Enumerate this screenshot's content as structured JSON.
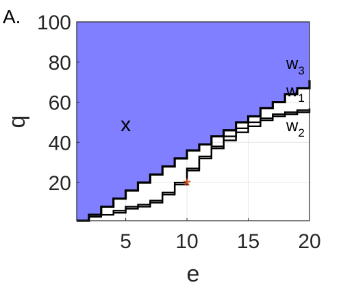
{
  "chart_data": {
    "type": "line",
    "panel_label": "A.",
    "xlabel": "e",
    "ylabel": "q",
    "xlim": [
      1,
      20
    ],
    "ylim": [
      1,
      100
    ],
    "xticks": [
      5,
      10,
      15,
      20
    ],
    "yticks": [
      20,
      40,
      60,
      80,
      100
    ],
    "grid": true,
    "region": {
      "label": "x",
      "label_at": [
        5,
        49
      ],
      "color": "#7f7fff",
      "description_boundary": "w3"
    },
    "marker": {
      "symbol": "*",
      "x": 10,
      "y": 20,
      "color": "#d95319"
    },
    "series": [
      {
        "name": "w3",
        "label_main": "w",
        "label_sub": "3",
        "points": [
          [
            1,
            1
          ],
          [
            2,
            4
          ],
          [
            3,
            8
          ],
          [
            4,
            12
          ],
          [
            5,
            16
          ],
          [
            6,
            20
          ],
          [
            7,
            24
          ],
          [
            8,
            28
          ],
          [
            9,
            32
          ],
          [
            10,
            36
          ],
          [
            11,
            39
          ],
          [
            12,
            43
          ],
          [
            13,
            46
          ],
          [
            14,
            50
          ],
          [
            15,
            53
          ],
          [
            16,
            57
          ],
          [
            17,
            60
          ],
          [
            18,
            64
          ],
          [
            19,
            67
          ],
          [
            20,
            71
          ]
        ]
      },
      {
        "name": "w1",
        "label_main": "w",
        "label_sub": "1",
        "points": [
          [
            1,
            1
          ],
          [
            2,
            3
          ],
          [
            3,
            4
          ],
          [
            4,
            6
          ],
          [
            5,
            8
          ],
          [
            6,
            9
          ],
          [
            7,
            11
          ],
          [
            8,
            15
          ],
          [
            9,
            20
          ],
          [
            10,
            27
          ],
          [
            11,
            33
          ],
          [
            12,
            38
          ],
          [
            13,
            43
          ],
          [
            14,
            47
          ],
          [
            15,
            50
          ],
          [
            16,
            52
          ],
          [
            17,
            54
          ],
          [
            18,
            55
          ],
          [
            19,
            56
          ],
          [
            20,
            57
          ]
        ]
      },
      {
        "name": "w2",
        "label_main": "w",
        "label_sub": "2",
        "points": [
          [
            1,
            1
          ],
          [
            2,
            3
          ],
          [
            3,
            4
          ],
          [
            4,
            5
          ],
          [
            5,
            7
          ],
          [
            6,
            8
          ],
          [
            7,
            10
          ],
          [
            8,
            14
          ],
          [
            9,
            19
          ],
          [
            10,
            26
          ],
          [
            11,
            32
          ],
          [
            12,
            37
          ],
          [
            13,
            41
          ],
          [
            14,
            45
          ],
          [
            15,
            48
          ],
          [
            16,
            51
          ],
          [
            17,
            53
          ],
          [
            18,
            54
          ],
          [
            19,
            55
          ],
          [
            20,
            56
          ]
        ]
      }
    ]
  }
}
